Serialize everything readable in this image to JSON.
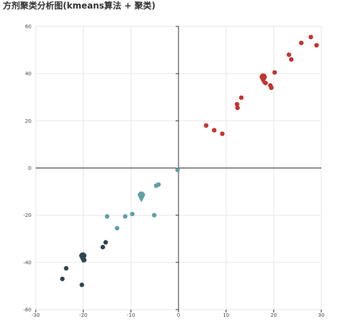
{
  "title": "方剂聚类分析图(kmeans算法 + 聚类)",
  "colors": {
    "cluster_red": "#c23531",
    "cluster_teal": "#61a0a8",
    "cluster_navy": "#2f4554",
    "grid": "#e6e6e6",
    "axis": "#333333"
  },
  "chart_data": {
    "type": "scatter",
    "title": "方剂聚类分析图(kmeans算法 + 聚类)",
    "xlim": [
      -30,
      30
    ],
    "ylim": [
      -60,
      60
    ],
    "x_ticks": [
      -30,
      -20,
      -10,
      0,
      10,
      20,
      30
    ],
    "y_ticks": [
      -60,
      -40,
      -20,
      0,
      20,
      40,
      60
    ],
    "grid": true,
    "legend": "none",
    "series": [
      {
        "color": "#c23531",
        "points": [
          [
            5.8,
            18
          ],
          [
            7.5,
            16
          ],
          [
            9.2,
            14.5
          ],
          [
            12.3,
            27
          ],
          [
            12.4,
            25.5
          ],
          [
            13.2,
            29.8
          ],
          [
            18.3,
            36
          ],
          [
            19.3,
            35
          ],
          [
            19.5,
            34
          ],
          [
            20.2,
            40.5
          ],
          [
            23.2,
            48
          ],
          [
            23.7,
            46
          ],
          [
            25.8,
            53
          ],
          [
            27.8,
            55.5
          ],
          [
            29,
            52
          ]
        ],
        "centroid": [
          17.8,
          38.5
        ]
      },
      {
        "color": "#61a0a8",
        "points": [
          [
            -0.2,
            -0.8
          ],
          [
            -4.2,
            -7
          ],
          [
            -4.7,
            -7.5
          ],
          [
            -5.1,
            -20
          ],
          [
            -9.7,
            -19.5
          ],
          [
            -11.2,
            -20.5
          ],
          [
            -12.9,
            -25.5
          ],
          [
            -15,
            -20.5
          ]
        ],
        "centroid": [
          -7.8,
          -11.5
        ]
      },
      {
        "color": "#2f4554",
        "points": [
          [
            -15.3,
            -31.5
          ],
          [
            -15.9,
            -33.5
          ],
          [
            -19.8,
            -39
          ],
          [
            -23.6,
            -42.5
          ],
          [
            -24.4,
            -47
          ],
          [
            -20.3,
            -49.5
          ]
        ],
        "centroid": [
          -20.1,
          -37.3
        ]
      }
    ]
  }
}
